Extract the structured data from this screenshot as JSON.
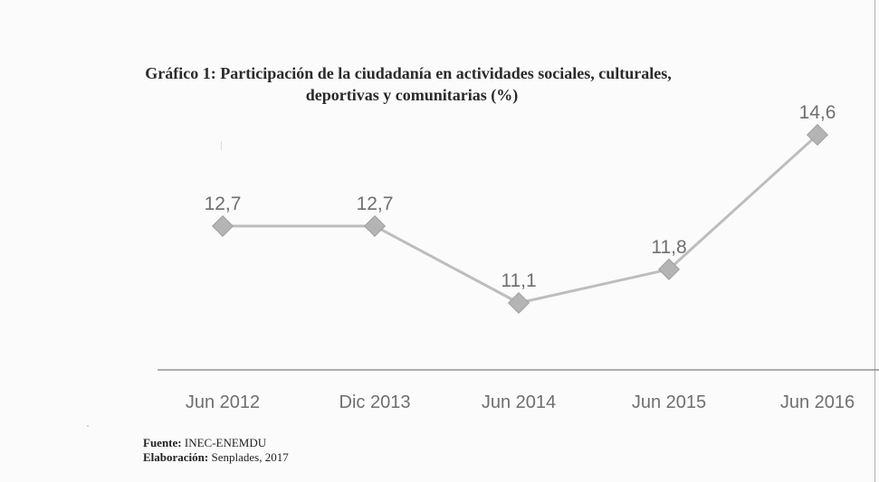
{
  "chart_title": {
    "line1": "Gráfico 1: Participación de la ciudadanía en actividades sociales, culturales,",
    "line2": "deportivas y comunitarias (%)"
  },
  "source": {
    "label": "Fuente:",
    "value": "INEC-ENEMDU"
  },
  "elaboration": {
    "label": "Elaboración:",
    "value": "Senplades, 2017"
  },
  "chart_data": {
    "type": "line",
    "title": "Gráfico 1: Participación de la ciudadanía en actividades sociales, culturales, deportivas y comunitarias (%)",
    "categories": [
      "Jun 2012",
      "Dic 2013",
      "Jun 2014",
      "Jun 2015",
      "Jun 2016"
    ],
    "series": [
      {
        "values": [
          12.7,
          12.7,
          11.1,
          11.8,
          14.6
        ],
        "labels": [
          "12,7",
          "12,7",
          "11,1",
          "11,8",
          "14,6"
        ]
      }
    ],
    "xlabel": "",
    "ylabel": "",
    "grid": false,
    "legend": "none",
    "colors": {
      "line": "#bdbdbd",
      "marker": "#b4b4b4",
      "marker_stroke": "#9f9f9f",
      "axis": "#7c7c7c",
      "label": "#6f6f6f"
    }
  }
}
